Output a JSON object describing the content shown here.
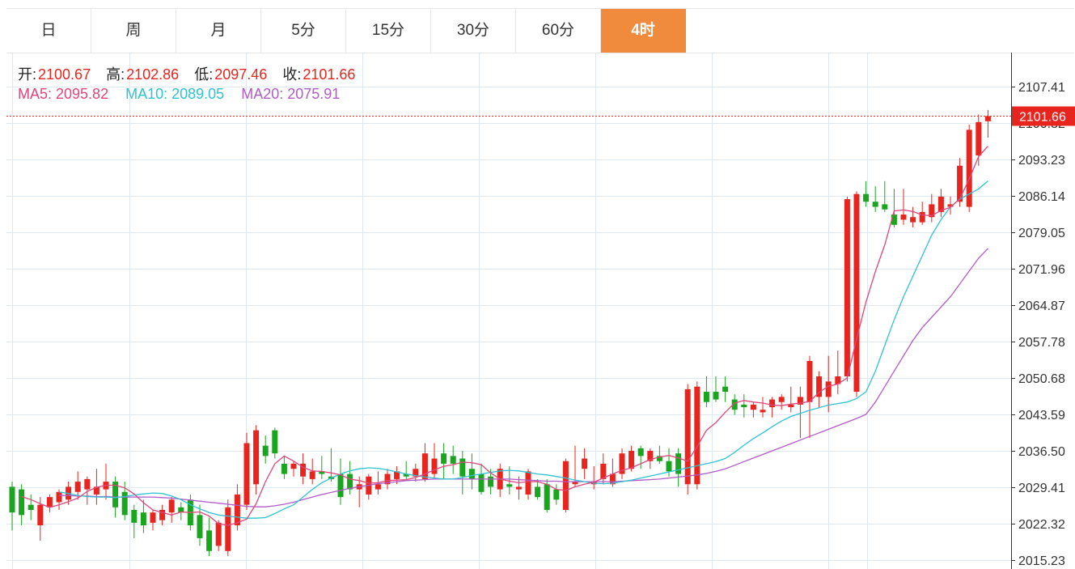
{
  "tabs": [
    {
      "label": "日",
      "active": false
    },
    {
      "label": "周",
      "active": false
    },
    {
      "label": "月",
      "active": false
    },
    {
      "label": "5分",
      "active": false
    },
    {
      "label": "15分",
      "active": false
    },
    {
      "label": "30分",
      "active": false
    },
    {
      "label": "60分",
      "active": false
    },
    {
      "label": "4时",
      "active": true
    }
  ],
  "info": {
    "open_label": "开:",
    "open_value": "2100.67",
    "high_label": "高:",
    "high_value": "2102.86",
    "low_label": "低:",
    "low_value": "2097.46",
    "close_label": "收:",
    "close_value": "2101.66",
    "ma5_text": "MA5: 2095.82",
    "ma10_text": "MA10: 2089.05",
    "ma20_text": "MA20: 2075.91"
  },
  "colors": {
    "up": "#e8241e",
    "down": "#1aa51f",
    "ma5": "#e0467c",
    "ma10": "#2fc2d2",
    "ma20": "#b25ac8",
    "active_tab": "#f08a3c",
    "grid": "#dde8f0",
    "current_price": "#e8241e"
  },
  "chart_data": {
    "type": "candlestick",
    "yaxis_ticks": [
      "2107.41",
      "2100.32",
      "2093.23",
      "2086.14",
      "2079.05",
      "2071.96",
      "2064.87",
      "2057.78",
      "2050.68",
      "2043.59",
      "2036.50",
      "2029.41",
      "2022.32",
      "2015.23"
    ],
    "ylim": [
      2015.23,
      2107.41
    ],
    "current_price": "2101.66",
    "candles": [
      [
        2029.5,
        2030.5,
        2021.0,
        2024.5
      ],
      [
        2029.0,
        2030.0,
        2022.0,
        2024.0
      ],
      [
        2026.0,
        2028.0,
        2023.0,
        2025.0
      ],
      [
        2022.0,
        2027.5,
        2019.0,
        2026.0
      ],
      [
        2025.5,
        2028.0,
        2024.5,
        2027.5
      ],
      [
        2026.5,
        2029.0,
        2025.0,
        2028.5
      ],
      [
        2027.0,
        2030.5,
        2026.0,
        2029.5
      ],
      [
        2028.5,
        2032.5,
        2027.0,
        2030.5
      ],
      [
        2029.0,
        2031.5,
        2026.0,
        2031.0
      ],
      [
        2028.0,
        2033.0,
        2026.0,
        2029.5
      ],
      [
        2029.0,
        2034.0,
        2027.0,
        2030.5
      ],
      [
        2030.5,
        2031.5,
        2023.5,
        2025.5
      ],
      [
        2028.5,
        2030.5,
        2023.0,
        2024.0
      ],
      [
        2025.0,
        2026.0,
        2019.5,
        2022.5
      ],
      [
        2024.5,
        2027.0,
        2020.5,
        2022.0
      ],
      [
        2022.5,
        2025.0,
        2021.0,
        2024.5
      ],
      [
        2023.0,
        2026.0,
        2022.0,
        2025.0
      ],
      [
        2024.5,
        2027.5,
        2022.5,
        2027.0
      ],
      [
        2025.5,
        2026.5,
        2023.0,
        2024.5
      ],
      [
        2027.0,
        2028.0,
        2021.0,
        2022.0
      ],
      [
        2024.0,
        2026.0,
        2018.0,
        2019.5
      ],
      [
        2021.0,
        2023.5,
        2016.0,
        2017.0
      ],
      [
        2018.0,
        2023.0,
        2017.0,
        2022.5
      ],
      [
        2017.0,
        2027.0,
        2016.0,
        2025.5
      ],
      [
        2022.0,
        2030.0,
        2021.0,
        2028.0
      ],
      [
        2026.0,
        2040.0,
        2025.0,
        2038.0
      ],
      [
        2030.0,
        2041.5,
        2028.0,
        2040.5
      ],
      [
        2037.5,
        2039.5,
        2034.0,
        2035.5
      ],
      [
        2040.5,
        2041.0,
        2035.0,
        2036.0
      ],
      [
        2034.0,
        2035.5,
        2031.0,
        2032.0
      ],
      [
        2033.0,
        2034.5,
        2031.5,
        2034.0
      ],
      [
        2031.5,
        2036.0,
        2030.0,
        2034.0
      ],
      [
        2031.0,
        2035.0,
        2030.0,
        2032.5
      ],
      [
        2032.5,
        2035.5,
        2031.0,
        2032.0
      ],
      [
        2031.5,
        2037.0,
        2030.5,
        2031.0
      ],
      [
        2032.0,
        2035.0,
        2026.0,
        2027.5
      ],
      [
        2032.0,
        2034.5,
        2028.0,
        2029.0
      ],
      [
        2029.0,
        2031.5,
        2025.5,
        2030.0
      ],
      [
        2028.0,
        2032.0,
        2027.0,
        2031.5
      ],
      [
        2029.0,
        2032.5,
        2028.0,
        2030.0
      ],
      [
        2030.0,
        2033.0,
        2029.0,
        2032.0
      ],
      [
        2031.0,
        2033.5,
        2030.0,
        2032.5
      ],
      [
        2032.0,
        2034.5,
        2031.0,
        2031.5
      ],
      [
        2031.5,
        2034.0,
        2030.5,
        2033.0
      ],
      [
        2031.0,
        2038.0,
        2030.5,
        2036.0
      ],
      [
        2032.0,
        2038.0,
        2031.0,
        2035.0
      ],
      [
        2036.0,
        2038.0,
        2031.0,
        2034.0
      ],
      [
        2035.5,
        2037.5,
        2032.0,
        2034.0
      ],
      [
        2035.0,
        2036.5,
        2028.0,
        2031.5
      ],
      [
        2033.0,
        2036.0,
        2029.0,
        2031.0
      ],
      [
        2032.0,
        2034.0,
        2028.0,
        2028.5
      ],
      [
        2031.5,
        2033.0,
        2028.0,
        2029.5
      ],
      [
        2029.0,
        2034.0,
        2027.5,
        2033.0
      ],
      [
        2030.0,
        2033.5,
        2028.0,
        2029.5
      ],
      [
        2029.0,
        2031.5,
        2027.0,
        2029.5
      ],
      [
        2028.0,
        2033.0,
        2027.0,
        2032.5
      ],
      [
        2029.5,
        2031.0,
        2027.0,
        2027.5
      ],
      [
        2030.0,
        2031.0,
        2024.5,
        2025.0
      ],
      [
        2029.0,
        2030.0,
        2026.0,
        2027.0
      ],
      [
        2025.0,
        2035.0,
        2024.5,
        2034.5
      ],
      [
        2030.0,
        2037.5,
        2029.5,
        2030.5
      ],
      [
        2033.0,
        2037.0,
        2031.0,
        2035.0
      ],
      [
        2030.0,
        2033.5,
        2029.0,
        2030.5
      ],
      [
        2031.0,
        2036.0,
        2030.0,
        2034.0
      ],
      [
        2030.0,
        2035.0,
        2029.5,
        2032.0
      ],
      [
        2032.0,
        2037.0,
        2031.0,
        2036.0
      ],
      [
        2033.0,
        2037.5,
        2032.5,
        2036.5
      ],
      [
        2037.0,
        2037.5,
        2033.0,
        2035.5
      ],
      [
        2034.5,
        2037.0,
        2033.0,
        2036.5
      ],
      [
        2035.5,
        2037.5,
        2034.0,
        2034.5
      ],
      [
        2034.5,
        2037.0,
        2031.5,
        2032.5
      ],
      [
        2036.0,
        2037.0,
        2029.5,
        2032.0
      ],
      [
        2030.0,
        2049.5,
        2028.0,
        2048.5
      ],
      [
        2030.0,
        2050.0,
        2029.0,
        2049.0
      ],
      [
        2048.0,
        2051.0,
        2045.0,
        2046.0
      ],
      [
        2048.0,
        2051.0,
        2046.0,
        2046.5
      ],
      [
        2049.0,
        2051.0,
        2046.0,
        2048.0
      ],
      [
        2046.5,
        2047.5,
        2043.5,
        2044.5
      ],
      [
        2045.5,
        2047.5,
        2043.0,
        2045.0
      ],
      [
        2044.5,
        2046.0,
        2043.0,
        2045.5
      ],
      [
        2044.0,
        2047.0,
        2043.0,
        2044.5
      ],
      [
        2045.0,
        2047.0,
        2043.0,
        2046.5
      ],
      [
        2046.0,
        2047.5,
        2044.5,
        2047.0
      ],
      [
        2045.0,
        2049.0,
        2044.0,
        2045.5
      ],
      [
        2045.5,
        2049.0,
        2039.0,
        2047.0
      ],
      [
        2046.0,
        2055.0,
        2039.0,
        2054.0
      ],
      [
        2047.0,
        2052.0,
        2045.0,
        2051.0
      ],
      [
        2047.0,
        2055.0,
        2044.0,
        2050.0
      ],
      [
        2049.5,
        2056.0,
        2047.5,
        2051.0
      ],
      [
        2051.0,
        2086.0,
        2050.0,
        2085.5
      ],
      [
        2048.0,
        2087.0,
        2047.0,
        2086.5
      ],
      [
        2086.5,
        2089.0,
        2084.0,
        2085.0
      ],
      [
        2085.0,
        2088.0,
        2083.0,
        2084.0
      ],
      [
        2084.5,
        2089.0,
        2083.0,
        2083.5
      ],
      [
        2082.5,
        2087.5,
        2080.0,
        2080.5
      ],
      [
        2081.5,
        2087.5,
        2080.5,
        2082.5
      ],
      [
        2081.0,
        2084.0,
        2080.0,
        2082.0
      ],
      [
        2081.0,
        2085.0,
        2080.5,
        2083.0
      ],
      [
        2082.0,
        2086.5,
        2081.0,
        2084.5
      ],
      [
        2083.0,
        2087.5,
        2082.0,
        2086.0
      ],
      [
        2084.0,
        2086.0,
        2082.5,
        2084.5
      ],
      [
        2085.0,
        2093.5,
        2084.0,
        2092.0
      ],
      [
        2084.0,
        2100.0,
        2083.0,
        2099.0
      ],
      [
        2094.0,
        2102.0,
        2092.0,
        2100.5
      ],
      [
        2100.67,
        2102.86,
        2097.46,
        2101.66
      ]
    ],
    "ma5": [
      2027.6,
      2027.0,
      2026.2,
      2025.5,
      2026.0,
      2026.6,
      2027.3,
      2028.6,
      2029.4,
      2029.8,
      2029.8,
      2029.3,
      2028.1,
      2026.4,
      2025.0,
      2024.5,
      2024.0,
      2024.6,
      2024.5,
      2024.6,
      2023.8,
      2022.3,
      2022.0,
      2022.5,
      2023.2,
      2026.2,
      2030.5,
      2034.0,
      2035.5,
      2034.5,
      2033.3,
      2032.6,
      2032.5,
      2032.2,
      2031.8,
      2031.0,
      2030.7,
      2030.2,
      2030.3,
      2030.7,
      2030.8,
      2030.9,
      2031.3,
      2032.0,
      2032.8,
      2033.5,
      2033.8,
      2034.3,
      2034.2,
      2033.8,
      2032.2,
      2031.0,
      2030.6,
      2030.3,
      2030.5,
      2030.5,
      2030.0,
      2029.0,
      2028.8,
      2029.5,
      2030.0,
      2030.4,
      2031.2,
      2032.0,
      2032.7,
      2033.2,
      2034.0,
      2034.8,
      2035.3,
      2035.6,
      2035.1,
      2034.5,
      2037.3,
      2040.5,
      2042.0,
      2044.0,
      2045.8,
      2046.3,
      2046.0,
      2045.8,
      2045.4,
      2045.3,
      2045.6,
      2045.8,
      2046.1,
      2047.9,
      2049.1,
      2049.5,
      2050.7,
      2058.3,
      2065.5,
      2071.4,
      2076.6,
      2083.2,
      2083.4,
      2083.1,
      2082.4,
      2082.3,
      2083.3,
      2083.9,
      2085.6,
      2089.4,
      2093.8,
      2095.82
    ],
    "ma10": [
      2028.5,
      2028.2,
      2027.8,
      2027.6,
      2027.5,
      2027.5,
      2027.4,
      2027.6,
      2027.9,
      2028.1,
      2028.3,
      2028.2,
      2027.7,
      2027.0,
      2026.0,
      2025.2,
      2024.5,
      2024.0,
      2023.8,
      2023.6,
      2023.4,
      2023.4,
      2023.5,
      2024.3,
      2025.2,
      2026.0,
      2027.5,
      2029.0,
      2030.3,
      2031.2,
      2032.0,
      2032.6,
      2033.0,
      2033.2,
      2033.1,
      2032.8,
      2032.4,
      2032.0,
      2031.7,
      2031.4,
      2031.2,
      2031.0,
      2031.0,
      2031.3,
      2031.7,
      2032.0,
      2032.3,
      2032.6,
      2032.7,
      2032.6,
      2032.3,
      2032.0,
      2031.8,
      2031.5,
      2031.2,
      2030.8,
      2030.5,
      2030.2,
      2030.1,
      2030.2,
      2030.5,
      2030.8,
      2031.2,
      2031.6,
      2032.0,
      2032.4,
      2032.8,
      2033.2,
      2033.6,
      2034.0,
      2034.4,
      2035.0,
      2036.2,
      2037.6,
      2038.9,
      2040.0,
      2041.2,
      2042.3,
      2043.2,
      2043.8,
      2044.4,
      2044.9,
      2045.4,
      2045.7,
      2046.0,
      2046.7,
      2048.0,
      2052.0,
      2057.0,
      2062.0,
      2066.5,
      2070.5,
      2074.5,
      2078.5,
      2081.5,
      2084.0,
      2085.5,
      2086.5,
      2087.5,
      2089.05
    ],
    "ma20": [
      2027.8,
      2027.8,
      2027.7,
      2027.7,
      2027.6,
      2027.6,
      2027.5,
      2027.5,
      2027.5,
      2027.5,
      2027.5,
      2027.4,
      2027.3,
      2027.1,
      2026.9,
      2026.7,
      2026.5,
      2026.3,
      2026.1,
      2025.9,
      2025.7,
      2025.6,
      2025.6,
      2025.8,
      2026.1,
      2026.5,
      2027.0,
      2027.5,
      2028.0,
      2028.4,
      2028.8,
      2029.2,
      2029.5,
      2029.8,
      2030.1,
      2030.3,
      2030.5,
      2030.7,
      2030.8,
      2030.9,
      2031.0,
      2031.0,
      2031.0,
      2031.0,
      2031.0,
      2031.0,
      2031.0,
      2031.0,
      2031.0,
      2030.9,
      2030.8,
      2030.7,
      2030.6,
      2030.6,
      2030.5,
      2030.5,
      2030.5,
      2030.5,
      2030.5,
      2030.5,
      2030.6,
      2030.7,
      2030.8,
      2030.9,
      2031.0,
      2031.2,
      2031.4,
      2031.6,
      2031.8,
      2032.1,
      2032.5,
      2033.0,
      2033.7,
      2034.4,
      2035.1,
      2035.8,
      2036.5,
      2037.2,
      2037.9,
      2038.6,
      2039.3,
      2040.0,
      2040.7,
      2041.4,
      2042.1,
      2042.8,
      2043.6,
      2046.0,
      2049.0,
      2052.0,
      2055.0,
      2058.0,
      2060.5,
      2062.5,
      2064.5,
      2066.5,
      2069.0,
      2071.5,
      2074.0,
      2075.91
    ]
  }
}
